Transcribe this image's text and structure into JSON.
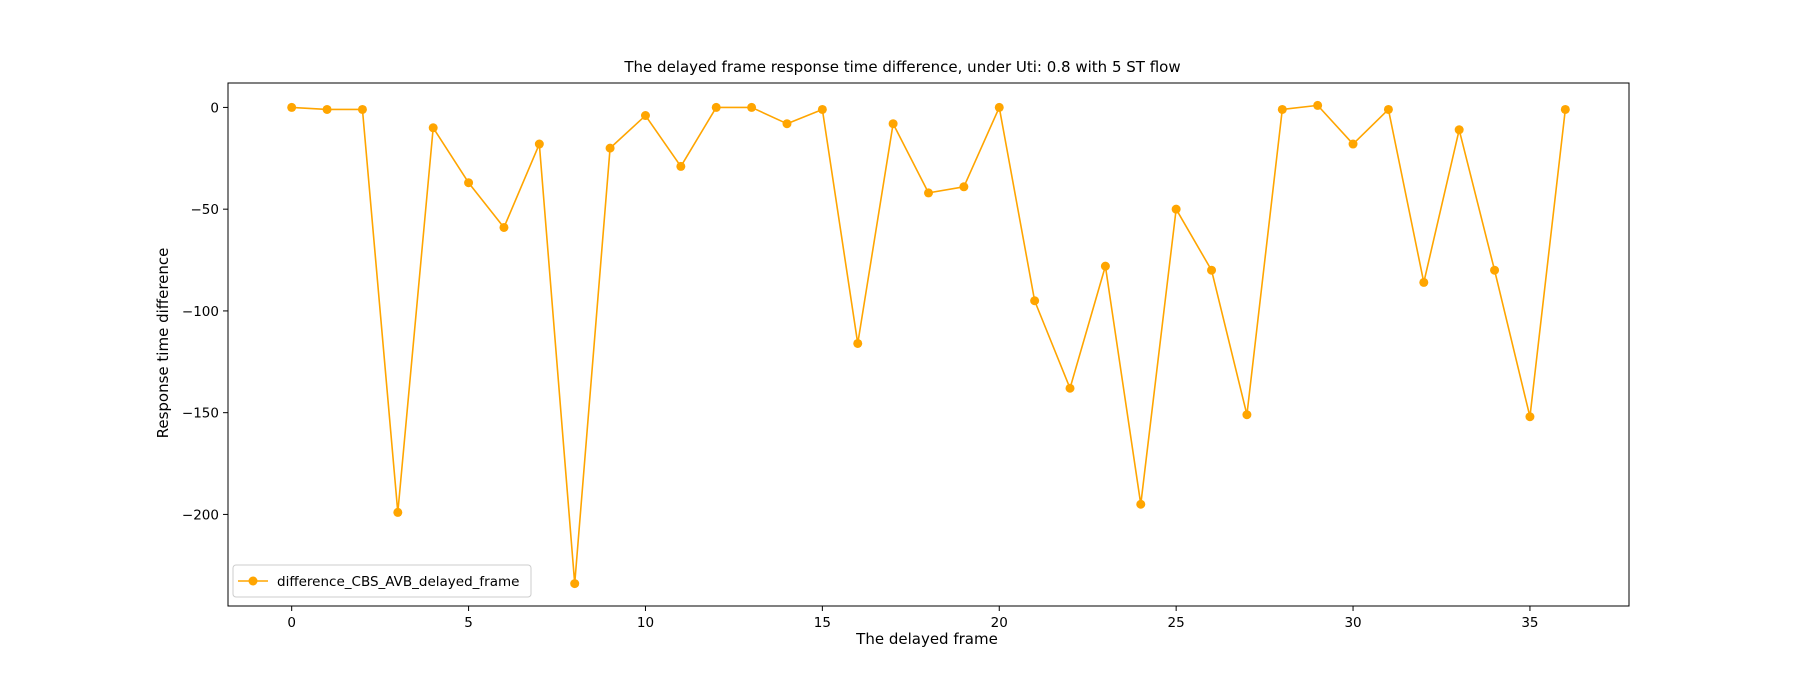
{
  "chart_data": {
    "type": "line",
    "title": "The delayed frame response time difference, under Uti: 0.8 with 5 ST flow",
    "xlabel": "The delayed frame",
    "ylabel": "Response time difference",
    "xlim": [
      -1.8,
      37.8
    ],
    "ylim": [
      -245,
      12
    ],
    "xticks": [
      0,
      5,
      10,
      15,
      20,
      25,
      30,
      35
    ],
    "yticks": [
      0,
      -50,
      -100,
      -150,
      -200
    ],
    "grid": false,
    "legend": {
      "placement": "lower-left"
    },
    "series": [
      {
        "name": "difference_CBS_AVB_delayed_frame",
        "color": "#FFA500",
        "marker": "circle",
        "x": [
          0,
          1,
          2,
          3,
          4,
          5,
          6,
          7,
          8,
          9,
          10,
          11,
          12,
          13,
          14,
          15,
          16,
          17,
          18,
          19,
          20,
          21,
          22,
          23,
          24,
          25,
          26,
          27,
          28,
          29,
          30,
          31,
          32,
          33,
          34,
          35,
          36
        ],
        "y": [
          0,
          -1,
          -1,
          -199,
          -10,
          -37,
          -59,
          -18,
          -234,
          -20,
          -4,
          -29,
          0,
          0,
          -8,
          -1,
          -116,
          -8,
          -42,
          -39,
          0,
          -95,
          -138,
          -78,
          -195,
          -50,
          -80,
          -151,
          -1,
          1,
          -18,
          -1,
          -86,
          -11,
          -80,
          -152,
          -1
        ]
      }
    ]
  }
}
